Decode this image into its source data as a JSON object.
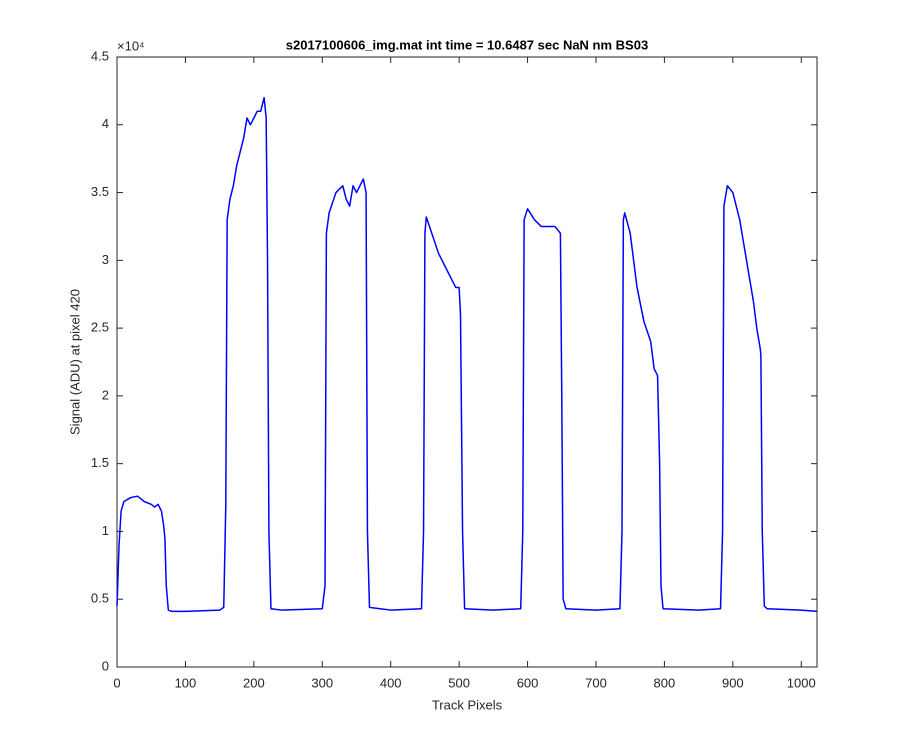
{
  "chart_data": {
    "type": "line",
    "title": "s2017100606_img.mat int time = 10.6487 sec  NaN nm BS03",
    "x_label": "Track Pixels",
    "y_label": "Signal (ADU) at pixel 420",
    "y_exponent_label": "×10⁴",
    "xlim": [
      0,
      1023
    ],
    "ylim": [
      0,
      4.5
    ],
    "xticks": [
      0,
      100,
      200,
      300,
      400,
      500,
      600,
      700,
      800,
      900,
      1000
    ],
    "yticks": [
      0,
      0.5,
      1,
      1.5,
      2,
      2.5,
      3,
      3.5,
      4,
      4.5
    ],
    "x": [
      0,
      3,
      6,
      10,
      20,
      30,
      40,
      50,
      55,
      60,
      65,
      68,
      70,
      72,
      75,
      80,
      100,
      150,
      156,
      159,
      161,
      165,
      170,
      175,
      180,
      185,
      190,
      195,
      200,
      205,
      210,
      215,
      218,
      220,
      222,
      225,
      240,
      300,
      304,
      306,
      310,
      320,
      330,
      335,
      340,
      345,
      350,
      355,
      360,
      364,
      366,
      369,
      400,
      445,
      448,
      450,
      452,
      460,
      470,
      480,
      490,
      495,
      500,
      502,
      505,
      508,
      550,
      590,
      593,
      595,
      600,
      610,
      620,
      630,
      640,
      648,
      650,
      652,
      656,
      700,
      735,
      738,
      740,
      742,
      750,
      760,
      770,
      780,
      785,
      790,
      793,
      795,
      798,
      850,
      882,
      885,
      887,
      892,
      900,
      910,
      920,
      930,
      935,
      940,
      941,
      943,
      946,
      950,
      1000,
      1023
    ],
    "series": [
      {
        "name": "signal",
        "color": "#0000ff",
        "values": [
          0.45,
          0.9,
          1.15,
          1.22,
          1.25,
          1.26,
          1.22,
          1.2,
          1.18,
          1.2,
          1.15,
          1.05,
          0.95,
          0.6,
          0.42,
          0.41,
          0.41,
          0.42,
          0.44,
          1.2,
          3.3,
          3.45,
          3.55,
          3.7,
          3.8,
          3.9,
          4.05,
          4.0,
          4.05,
          4.1,
          4.1,
          4.2,
          4.05,
          3.0,
          1.0,
          0.43,
          0.42,
          0.43,
          0.6,
          3.2,
          3.35,
          3.5,
          3.55,
          3.45,
          3.4,
          3.55,
          3.5,
          3.55,
          3.6,
          3.5,
          1.0,
          0.44,
          0.42,
          0.43,
          1.0,
          3.2,
          3.32,
          3.2,
          3.05,
          2.95,
          2.85,
          2.8,
          2.8,
          2.6,
          1.0,
          0.43,
          0.42,
          0.43,
          1.0,
          3.3,
          3.38,
          3.3,
          3.25,
          3.25,
          3.25,
          3.2,
          2.0,
          0.5,
          0.43,
          0.42,
          0.43,
          1.0,
          3.3,
          3.35,
          3.2,
          2.8,
          2.55,
          2.4,
          2.2,
          2.15,
          1.5,
          0.6,
          0.43,
          0.42,
          0.43,
          1.0,
          3.4,
          3.55,
          3.5,
          3.3,
          3.0,
          2.7,
          2.5,
          2.35,
          2.3,
          1.0,
          0.45,
          0.43,
          0.42,
          0.41
        ]
      }
    ]
  }
}
